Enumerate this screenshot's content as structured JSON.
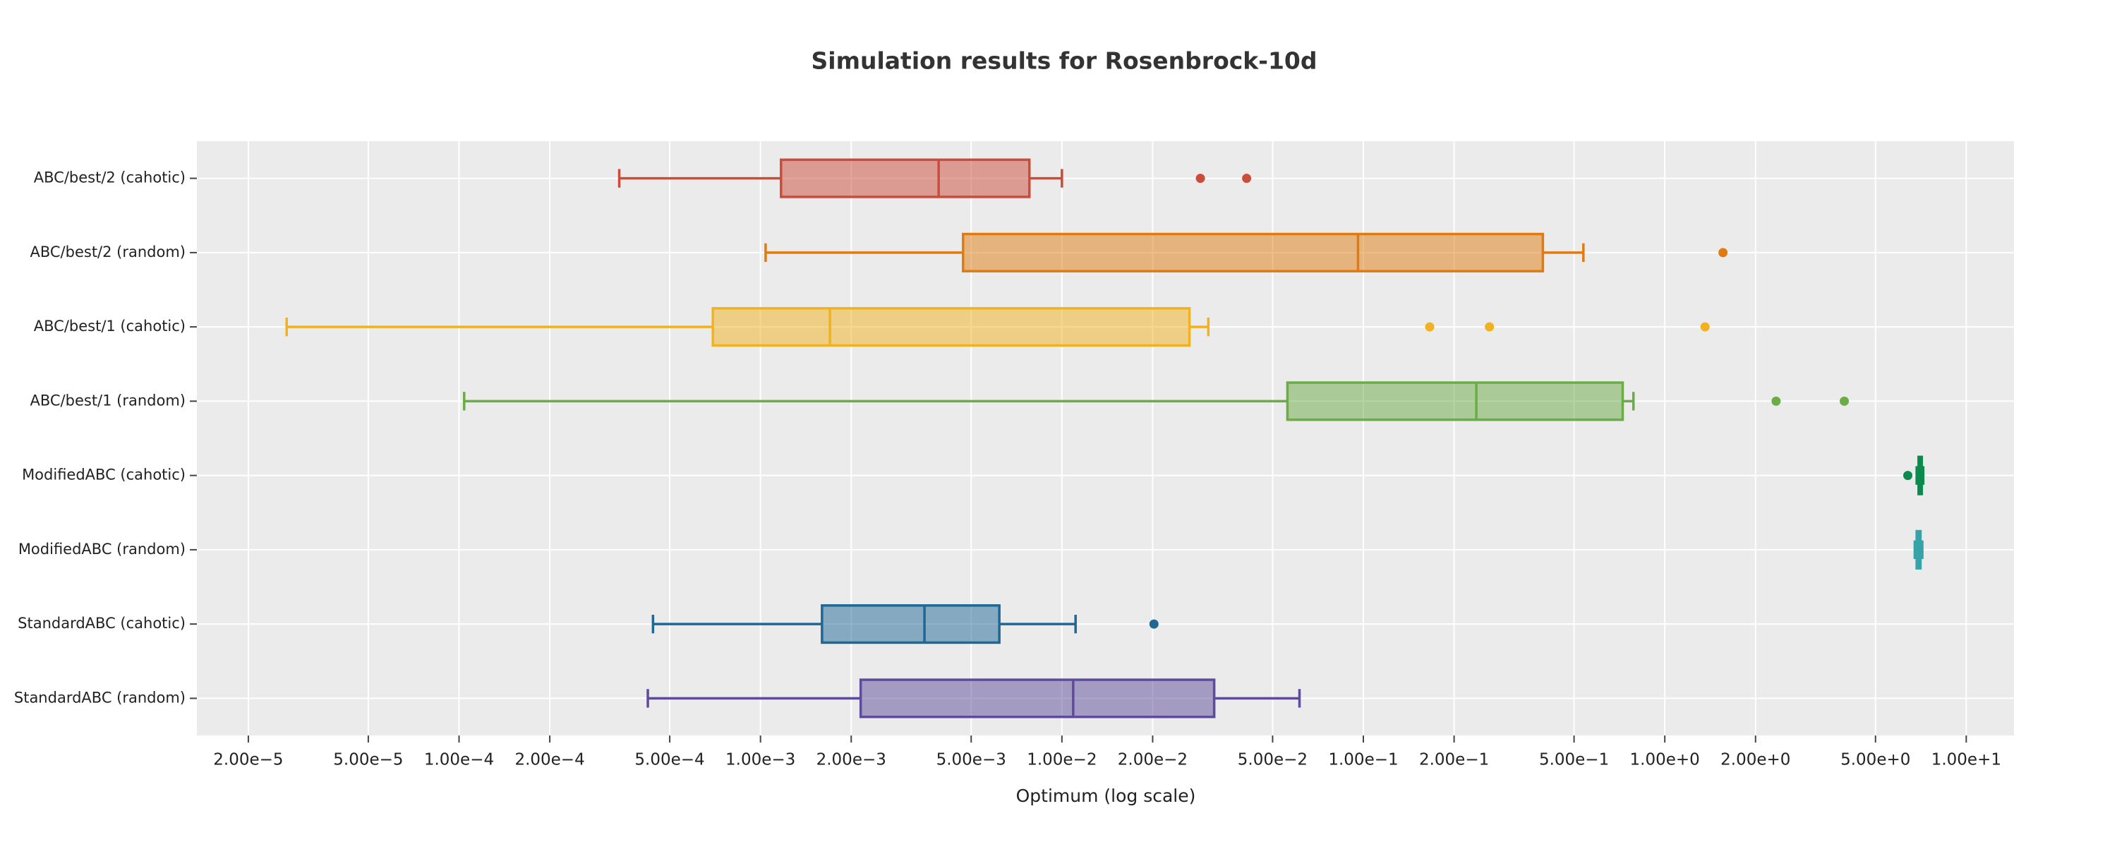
{
  "chart_data": {
    "type": "box",
    "title": "Simulation results for Rosenbrock-10d",
    "x_label": "Optimum (log scale)",
    "orientation": "horizontal",
    "xscale": "log",
    "grid": true,
    "xlim": [
      1.35e-05,
      14.4
    ],
    "xticks": [
      {
        "value": 2e-05,
        "label": "2.00e−5"
      },
      {
        "value": 5e-05,
        "label": "5.00e−5"
      },
      {
        "value": 0.0001,
        "label": "1.00e−4"
      },
      {
        "value": 0.0002,
        "label": "2.00e−4"
      },
      {
        "value": 0.0005,
        "label": "5.00e−4"
      },
      {
        "value": 0.001,
        "label": "1.00e−3"
      },
      {
        "value": 0.002,
        "label": "2.00e−3"
      },
      {
        "value": 0.005,
        "label": "5.00e−3"
      },
      {
        "value": 0.01,
        "label": "1.00e−2"
      },
      {
        "value": 0.02,
        "label": "2.00e−2"
      },
      {
        "value": 0.05,
        "label": "5.00e−2"
      },
      {
        "value": 0.1,
        "label": "1.00e−1"
      },
      {
        "value": 0.2,
        "label": "2.00e−1"
      },
      {
        "value": 0.5,
        "label": "5.00e−1"
      },
      {
        "value": 1,
        "label": "1.00e+0"
      },
      {
        "value": 2,
        "label": "2.00e+0"
      },
      {
        "value": 5,
        "label": "5.00e+0"
      },
      {
        "value": 10,
        "label": "1.00e+1"
      }
    ],
    "series": [
      {
        "name": "ABC/best/2 (cahotic)",
        "color": "#cc4c3b",
        "low": 0.00034,
        "q1": 0.00117,
        "median": 0.0039,
        "q3": 0.0078,
        "high": 0.01,
        "outliers": [
          0.0288,
          0.041
        ]
      },
      {
        "name": "ABC/best/2 (random)",
        "color": "#e07b10",
        "low": 0.00104,
        "q1": 0.0047,
        "median": 0.096,
        "q3": 0.394,
        "high": 0.537,
        "outliers": [
          1.56
        ]
      },
      {
        "name": "ABC/best/1 (cahotic)",
        "color": "#f0b21e",
        "low": 2.68e-05,
        "q1": 0.000695,
        "median": 0.0017,
        "q3": 0.0265,
        "high": 0.0306,
        "outliers": [
          0.166,
          0.262,
          1.36
        ]
      },
      {
        "name": "ABC/best/1 (random)",
        "color": "#6aac46",
        "low": 0.000104,
        "q1": 0.056,
        "median": 0.237,
        "q3": 0.725,
        "high": 0.787,
        "outliers": [
          2.34,
          3.94
        ]
      },
      {
        "name": "ModifiedABC (cahotic)",
        "color": "#0b8a4e",
        "low": 6.85,
        "q1": 6.95,
        "median": 7.05,
        "q3": 7.12,
        "high": 7.2,
        "outliers": [
          6.4
        ]
      },
      {
        "name": "ModifiedABC (random)",
        "color": "#36a3a8",
        "low": 6.75,
        "q1": 6.85,
        "median": 6.95,
        "q3": 7.05,
        "high": 7.15,
        "outliers": []
      },
      {
        "name": "StandardABC (cahotic)",
        "color": "#1f6896",
        "low": 0.00044,
        "q1": 0.0016,
        "median": 0.0035,
        "q3": 0.0062,
        "high": 0.0111,
        "outliers": [
          0.0202
        ]
      },
      {
        "name": "StandardABC (random)",
        "color": "#5e4b9c",
        "low": 0.000423,
        "q1": 0.00215,
        "median": 0.0109,
        "q3": 0.032,
        "high": 0.0614,
        "outliers": []
      }
    ]
  }
}
